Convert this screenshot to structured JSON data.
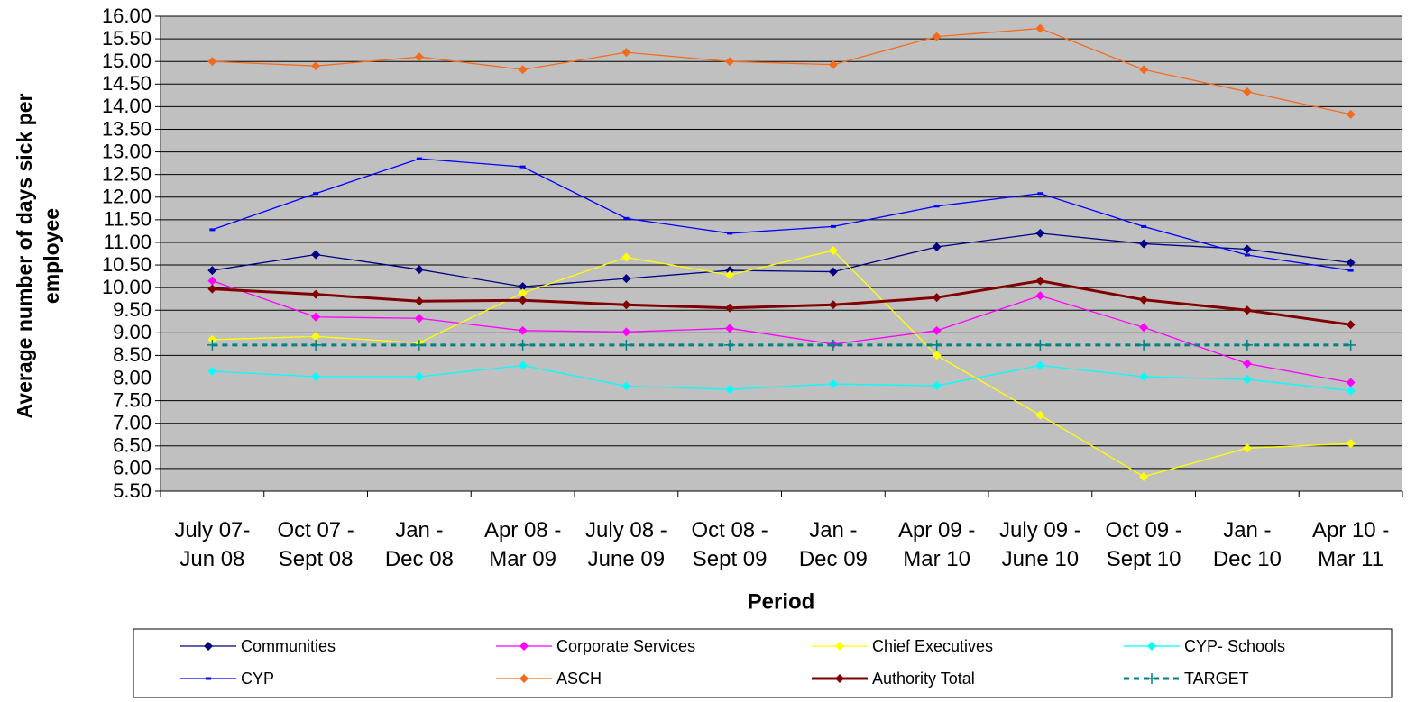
{
  "chart_data": {
    "type": "line",
    "x_label": "Period",
    "y_label": "Average number of days sick per\nemployee",
    "categories": [
      "July 07-\nJun 08",
      "Oct 07 -\nSept 08",
      "Jan -\nDec 08",
      "Apr 08 -\nMar 09",
      "July 08 -\nJune 09",
      "Oct 08 -\nSept 09",
      "Jan -\nDec 09",
      "Apr 09 -\nMar 10",
      "July 09 -\nJune 10",
      "Oct 09 -\nSept 10",
      "Jan -\nDec 10",
      "Apr 10 -\nMar 11"
    ],
    "series": [
      {
        "name": "Communities",
        "color": "#000080",
        "marker": "diamond",
        "values": [
          10.38,
          10.73,
          10.4,
          10.02,
          10.2,
          10.38,
          10.35,
          10.9,
          11.2,
          10.97,
          10.85,
          10.55
        ]
      },
      {
        "name": "Corporate Services",
        "color": "#ff00ff",
        "marker": "diamond",
        "values": [
          10.15,
          9.35,
          9.32,
          9.05,
          9.02,
          9.1,
          8.75,
          9.05,
          9.82,
          9.12,
          8.32,
          7.9
        ]
      },
      {
        "name": "Chief Executives",
        "color": "#ffff00",
        "marker": "diamond",
        "values": [
          8.85,
          8.92,
          8.78,
          9.88,
          10.67,
          10.28,
          10.82,
          8.5,
          7.18,
          5.82,
          6.45,
          6.55
        ]
      },
      {
        "name": "CYP- Schools",
        "color": "#00ffff",
        "marker": "diamond",
        "values": [
          8.15,
          8.03,
          8.03,
          8.28,
          7.82,
          7.75,
          7.87,
          7.83,
          8.28,
          8.03,
          7.97,
          7.72
        ]
      },
      {
        "name": "CYP",
        "color": "#0000ff",
        "marker": "dash",
        "values": [
          11.28,
          12.08,
          12.85,
          12.67,
          11.53,
          11.2,
          11.35,
          11.8,
          12.08,
          11.35,
          10.72,
          10.38
        ]
      },
      {
        "name": "ASCH",
        "color": "#f26c1e",
        "marker": "diamond",
        "values": [
          15.0,
          14.9,
          15.1,
          14.82,
          15.2,
          15.0,
          14.93,
          15.55,
          15.73,
          14.82,
          14.33,
          13.83
        ]
      },
      {
        "name": "Authority Total",
        "color": "#800000",
        "marker": "diamond",
        "line_width": 3,
        "values": [
          9.97,
          9.85,
          9.7,
          9.72,
          9.62,
          9.55,
          9.62,
          9.78,
          10.15,
          9.73,
          9.5,
          9.18
        ]
      },
      {
        "name": "TARGET",
        "color": "#008080",
        "marker": "plus",
        "dashed": true,
        "line_width": 3,
        "values": [
          8.73,
          8.73,
          8.73,
          8.73,
          8.73,
          8.73,
          8.73,
          8.73,
          8.73,
          8.73,
          8.73,
          8.73
        ]
      }
    ],
    "ylim": [
      5.5,
      16
    ],
    "yticks": [
      {
        "value": 5.5,
        "label": "5.50"
      },
      {
        "value": 6,
        "label": "6.00"
      },
      {
        "value": 6.5,
        "label": "6.50"
      },
      {
        "value": 7,
        "label": "7.00"
      },
      {
        "value": 7.5,
        "label": "7.50"
      },
      {
        "value": 8,
        "label": "8.00"
      },
      {
        "value": 8.5,
        "label": "8.50"
      },
      {
        "value": 9,
        "label": "9.00"
      },
      {
        "value": 9.5,
        "label": "9.50"
      },
      {
        "value": 10,
        "label": "10.00"
      },
      {
        "value": 10.5,
        "label": "10.50"
      },
      {
        "value": 11,
        "label": "11.00"
      },
      {
        "value": 11.5,
        "label": "11.50"
      },
      {
        "value": 12,
        "label": "12.00"
      },
      {
        "value": 12.5,
        "label": "12.50"
      },
      {
        "value": 13,
        "label": "13.00"
      },
      {
        "value": 13.5,
        "label": "13.50"
      },
      {
        "value": 14,
        "label": "14.00"
      },
      {
        "value": 14.5,
        "label": "14.50"
      },
      {
        "value": 15,
        "label": "15.00"
      },
      {
        "value": 15.5,
        "label": "15.50"
      },
      {
        "value": 16,
        "label": "16.00"
      }
    ],
    "grid": true,
    "legend": "bottom",
    "plot_background": "#c0c0c0"
  }
}
